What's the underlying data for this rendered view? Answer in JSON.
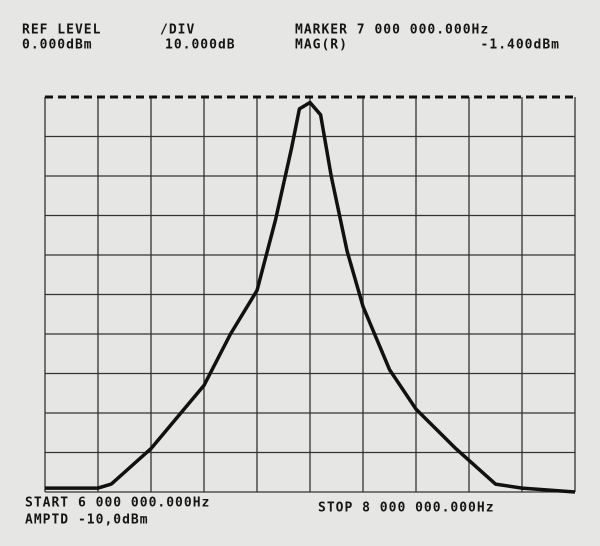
{
  "chart_data": {
    "type": "line",
    "annotations": [
      "REF LEVEL",
      "0.000dBm",
      "/DIV",
      "10.000dB",
      "MARKER 7 000 000.000Hz",
      "MAG(R)",
      "-1.400dBm",
      "START 6 000 000.000Hz",
      "STOP 8 000 000.000Hz",
      "AMPTD -10,0dBm"
    ],
    "x": [
      6000000,
      6200000,
      6250000,
      6400000,
      6600000,
      6700000,
      6800000,
      6870000,
      6930000,
      6960000,
      7000000,
      7040000,
      7080000,
      7140000,
      7200000,
      7300000,
      7400000,
      7550000,
      7700000,
      7800000,
      8000000
    ],
    "values": [
      -99,
      -99,
      -98,
      -89,
      -73,
      -60,
      -49,
      -31,
      -13,
      -3,
      -1.4,
      -4.5,
      -20,
      -39,
      -53,
      -69,
      -79,
      -89,
      -98,
      -99,
      -100
    ],
    "color": "#111111",
    "xlim": [
      6000000,
      8000000
    ],
    "ylim": [
      -100,
      0
    ],
    "xticks": [
      6000000,
      6200000,
      6400000,
      6600000,
      6800000,
      7000000,
      7200000,
      7400000,
      7600000,
      7800000,
      8000000
    ],
    "yticks": [
      -100,
      -90,
      -80,
      -70,
      -60,
      -50,
      -40,
      -30,
      -20,
      -10,
      0
    ],
    "grid": true
  }
}
